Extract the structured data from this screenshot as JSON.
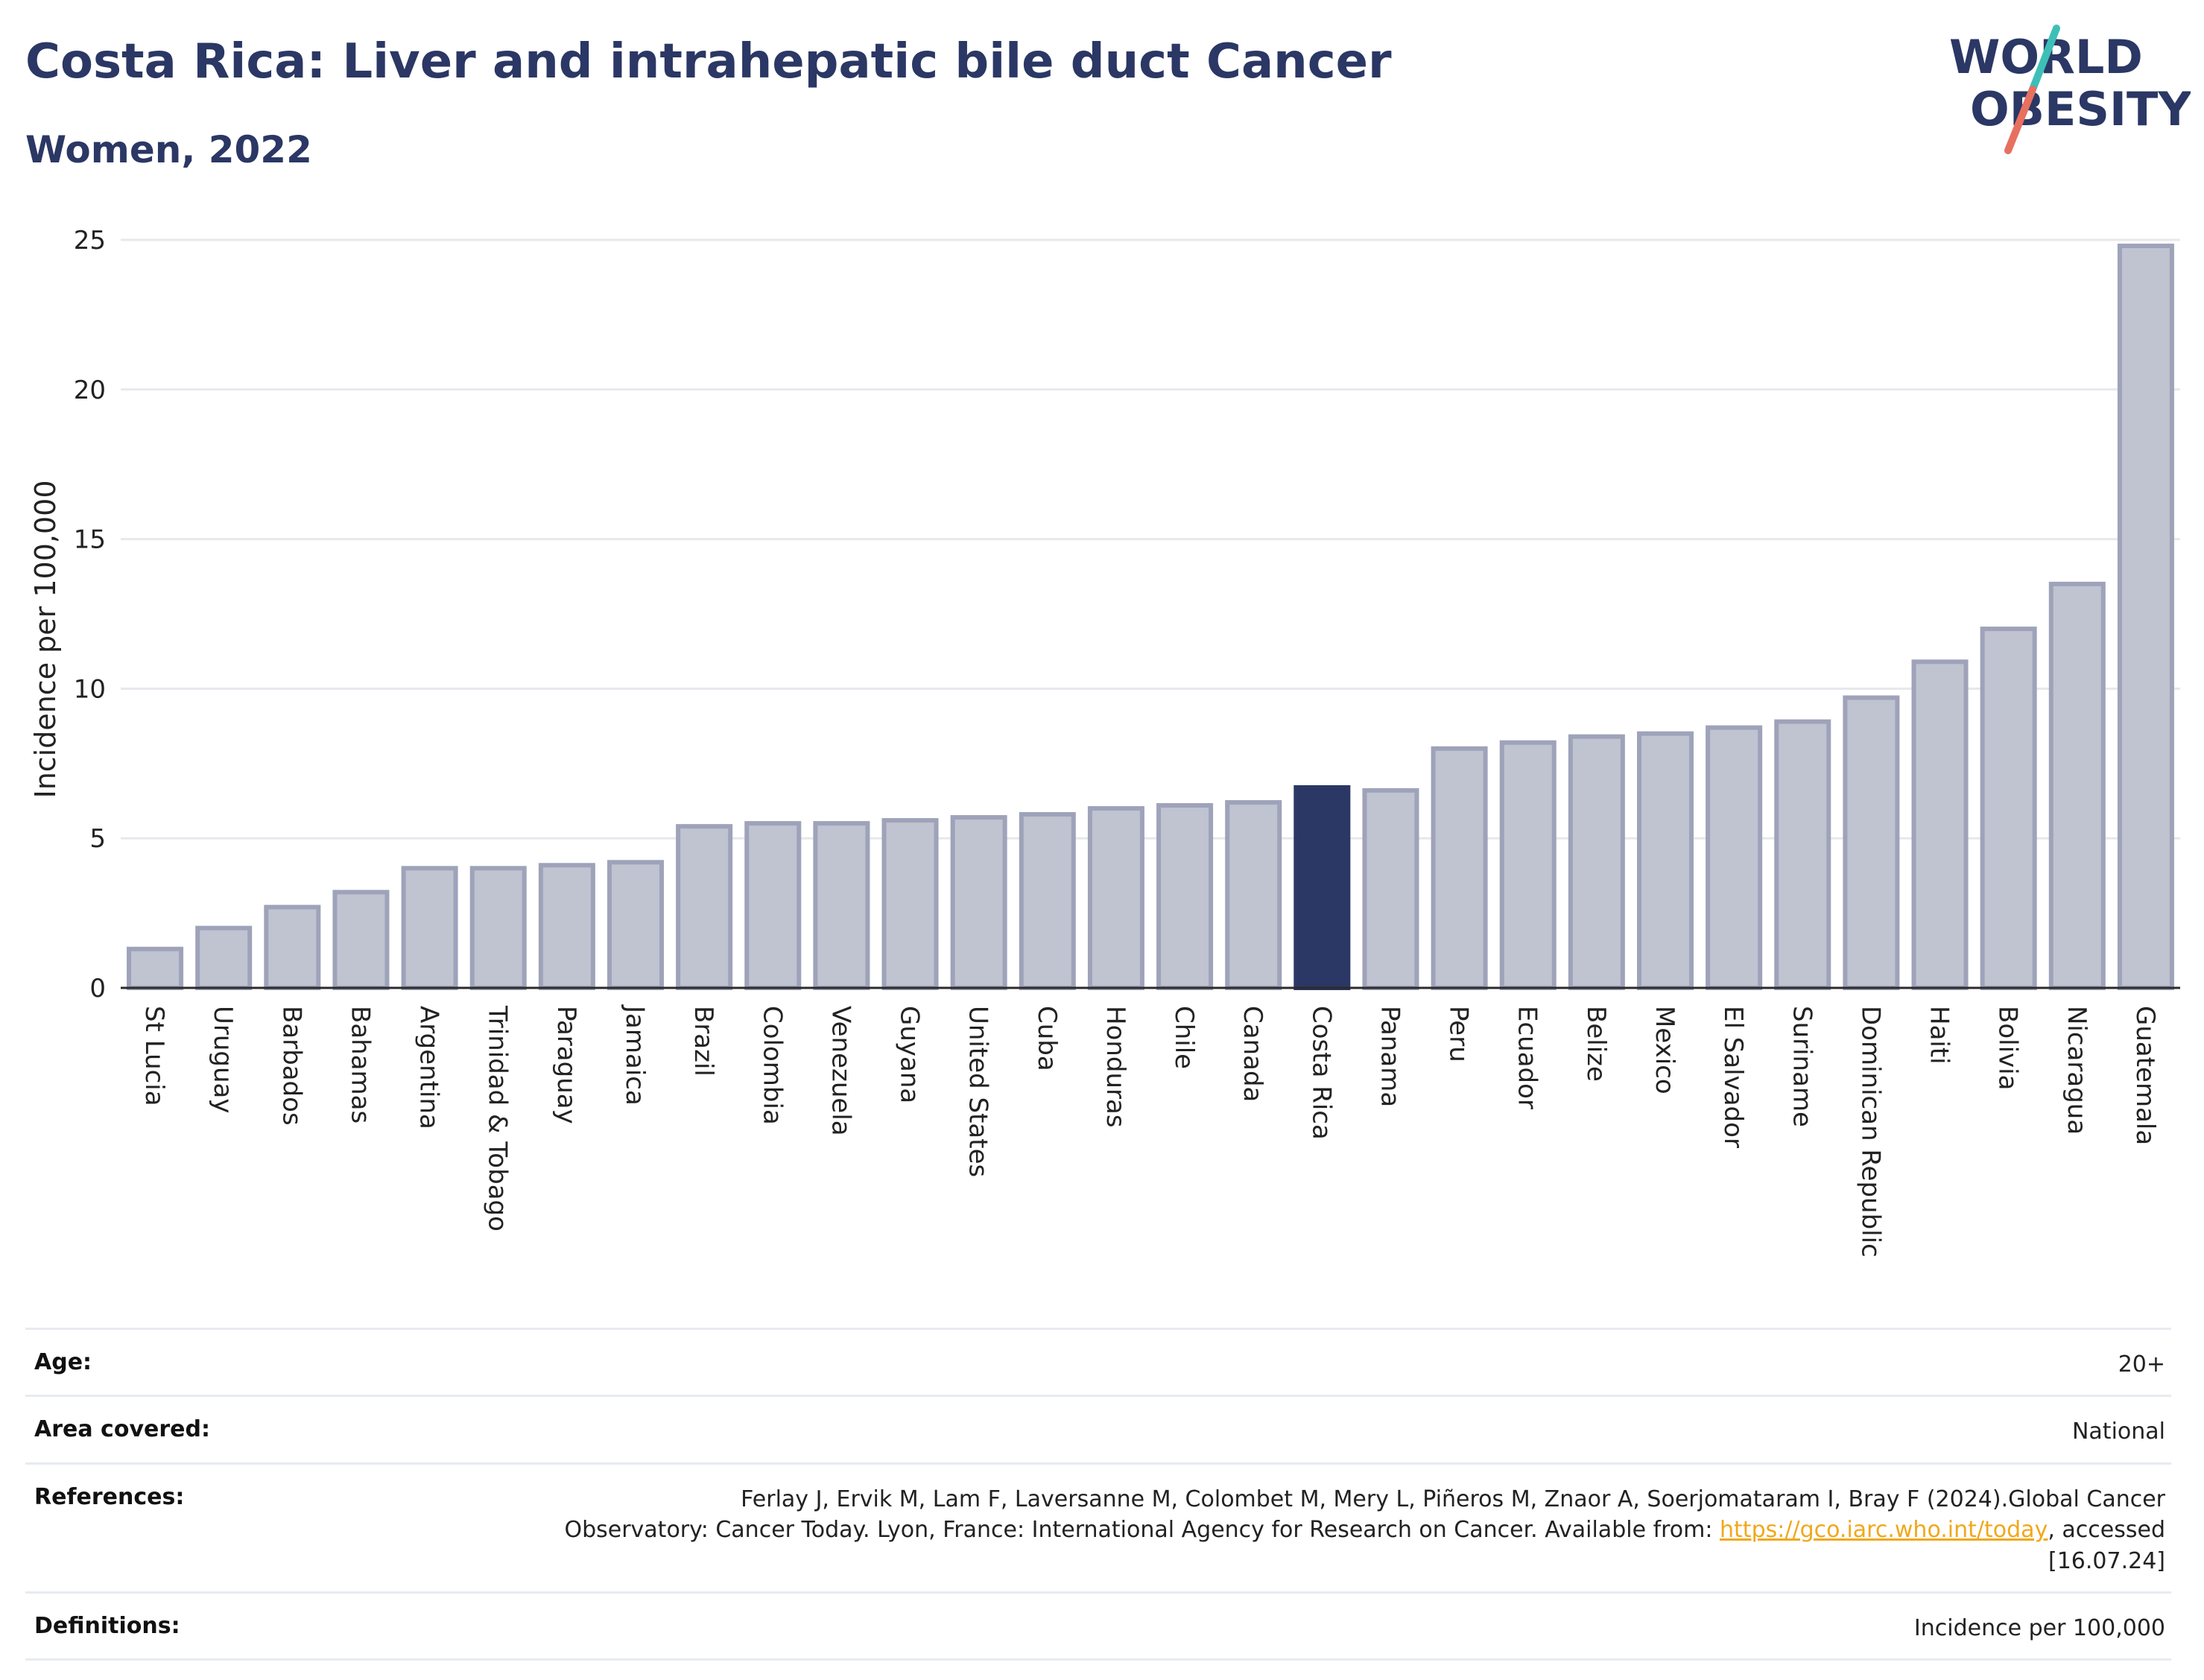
{
  "header": {
    "title": "Costa Rica: Liver and intrahepatic bile duct Cancer",
    "subtitle": "Women, 2022"
  },
  "logo": {
    "line1": "WORLD",
    "line2": "OBESITY",
    "accent_teal": "#3dbfb8",
    "accent_coral": "#e8705f",
    "navy": "#2b3764"
  },
  "colors": {
    "bar": "#c0c3d0",
    "bar_stroke": "#9ea3ba",
    "highlight": "#2b3764",
    "grid": "#e6e8ec",
    "axis": "#2b2b2b"
  },
  "chart_data": {
    "type": "bar",
    "ylabel": "Incidence per 100,000",
    "ylim": [
      0,
      25
    ],
    "yticks": [
      0,
      5,
      10,
      15,
      20,
      25
    ],
    "grid": true,
    "highlight": "Costa Rica",
    "categories": [
      "St Lucia",
      "Uruguay",
      "Barbados",
      "Bahamas",
      "Argentina",
      "Trinidad & Tobago",
      "Paraguay",
      "Jamaica",
      "Brazil",
      "Colombia",
      "Venezuela",
      "Guyana",
      "United States",
      "Cuba",
      "Honduras",
      "Chile",
      "Canada",
      "Costa Rica",
      "Panama",
      "Peru",
      "Ecuador",
      "Belize",
      "Mexico",
      "El Salvador",
      "Suriname",
      "Dominican Republic",
      "Haiti",
      "Bolivia",
      "Nicaragua",
      "Guatemala"
    ],
    "values": [
      1.3,
      2.0,
      2.7,
      3.2,
      4.0,
      4.0,
      4.1,
      4.2,
      5.4,
      5.5,
      5.5,
      5.6,
      5.7,
      5.8,
      6.0,
      6.1,
      6.2,
      6.7,
      6.6,
      8.0,
      8.2,
      8.4,
      8.5,
      8.7,
      8.9,
      9.7,
      10.9,
      12.0,
      13.5,
      24.8
    ]
  },
  "info": {
    "age_label": "Age:",
    "age_value": "20+",
    "area_label": "Area covered:",
    "area_value": "National",
    "references_label": "References:",
    "references_line1": "Ferlay J, Ervik M, Lam F, Laversanne M, Colombet M, Mery L, Piñeros M, Znaor A, Soerjomataram I, Bray F (2024).Global Cancer",
    "references_line2": "Observatory: Cancer Today. Lyon, France: International Agency for Research on Cancer. Available from: ",
    "references_link": "https://gco.iarc.who.int/today",
    "references_line3": ", accessed [16.07.24]",
    "definitions_label": "Definitions:",
    "definitions_value": "Incidence per 100,000"
  }
}
